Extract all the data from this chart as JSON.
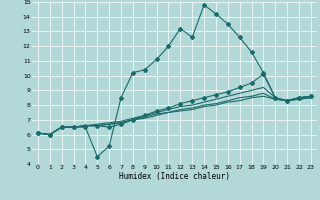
{
  "background_color": "#b2d8d8",
  "grid_color": "#a0c4c4",
  "line_color": "#1a6b6b",
  "xlabel": "Humidex (Indice chaleur)",
  "xlim": [
    -0.5,
    23.5
  ],
  "ylim": [
    4,
    15
  ],
  "yticks": [
    4,
    5,
    6,
    7,
    8,
    9,
    10,
    11,
    12,
    13,
    14,
    15
  ],
  "xticks": [
    0,
    1,
    2,
    3,
    4,
    5,
    6,
    7,
    8,
    9,
    10,
    11,
    12,
    13,
    14,
    15,
    16,
    17,
    18,
    19,
    20,
    21,
    22,
    23
  ],
  "line1_x": [
    0,
    1,
    2,
    3,
    4,
    5,
    6,
    7,
    8,
    9,
    10,
    11,
    12,
    13,
    14,
    15,
    16,
    17,
    18,
    19,
    20,
    21,
    22,
    23
  ],
  "line1_y": [
    6.1,
    6.0,
    6.5,
    6.5,
    6.5,
    4.5,
    5.2,
    8.5,
    10.2,
    10.4,
    11.1,
    12.0,
    13.2,
    12.6,
    14.8,
    14.2,
    13.5,
    12.6,
    11.6,
    10.2,
    8.5,
    8.3,
    8.5,
    8.6
  ],
  "line2_x": [
    0,
    1,
    2,
    3,
    4,
    5,
    6,
    7,
    8,
    9,
    10,
    11,
    12,
    13,
    14,
    15,
    16,
    17,
    18,
    19,
    20,
    21,
    22,
    23
  ],
  "line2_y": [
    6.1,
    6.0,
    6.5,
    6.5,
    6.6,
    6.6,
    6.5,
    6.7,
    7.0,
    7.3,
    7.6,
    7.8,
    8.1,
    8.3,
    8.5,
    8.7,
    8.9,
    9.2,
    9.5,
    10.1,
    8.5,
    8.3,
    8.5,
    8.6
  ],
  "line3_x": [
    0,
    1,
    2,
    3,
    4,
    5,
    6,
    7,
    8,
    9,
    10,
    11,
    12,
    13,
    14,
    15,
    16,
    17,
    18,
    19,
    20,
    21,
    22,
    23
  ],
  "line3_y": [
    6.1,
    6.0,
    6.5,
    6.5,
    6.6,
    6.6,
    6.7,
    6.8,
    7.0,
    7.1,
    7.3,
    7.5,
    7.6,
    7.7,
    7.9,
    8.0,
    8.2,
    8.3,
    8.5,
    8.6,
    8.4,
    8.3,
    8.4,
    8.5
  ],
  "line4_x": [
    0,
    1,
    2,
    3,
    4,
    5,
    6,
    7,
    8,
    9,
    10,
    11,
    12,
    13,
    14,
    15,
    16,
    17,
    18,
    19,
    20,
    21,
    22,
    23
  ],
  "line4_y": [
    6.1,
    6.0,
    6.5,
    6.5,
    6.6,
    6.6,
    6.7,
    6.8,
    7.0,
    7.2,
    7.4,
    7.5,
    7.7,
    7.8,
    8.0,
    8.1,
    8.3,
    8.5,
    8.6,
    8.8,
    8.4,
    8.3,
    8.4,
    8.5
  ],
  "line5_x": [
    0,
    1,
    2,
    3,
    4,
    5,
    6,
    7,
    8,
    9,
    10,
    11,
    12,
    13,
    14,
    15,
    16,
    17,
    18,
    19,
    20,
    21,
    22,
    23
  ],
  "line5_y": [
    6.1,
    6.0,
    6.5,
    6.5,
    6.6,
    6.7,
    6.8,
    6.9,
    7.1,
    7.3,
    7.5,
    7.7,
    7.9,
    8.0,
    8.2,
    8.4,
    8.6,
    8.8,
    9.0,
    9.2,
    8.5,
    8.3,
    8.5,
    8.6
  ]
}
